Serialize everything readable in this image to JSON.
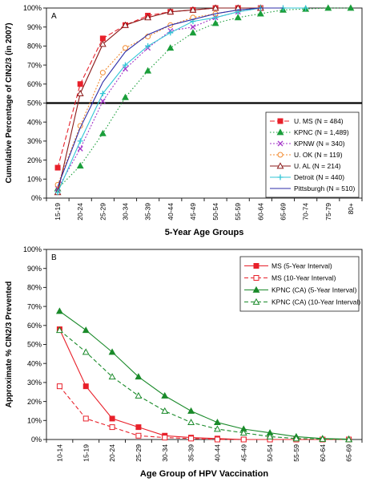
{
  "chart_data": [
    {
      "type": "line",
      "panel_label": "A",
      "title": "",
      "xlabel": "5-Year Age Groups",
      "ylabel": "Cumulative Percentage of CIN2/3 (in 2007)",
      "categories": [
        "15-19",
        "20-24",
        "25-29",
        "30-34",
        "35-39",
        "40-44",
        "45-49",
        "50-54",
        "55-59",
        "60-64",
        "65-69",
        "70-74",
        "75-79",
        "80+"
      ],
      "ylim": [
        0,
        100
      ],
      "yticks": [
        "0%",
        "10%",
        "20%",
        "30%",
        "40%",
        "50%",
        "60%",
        "70%",
        "80%",
        "90%",
        "100%"
      ],
      "grid": false,
      "reference_line": {
        "y": 50
      },
      "legend_position": "right-middle",
      "series": [
        {
          "name": "U. MS (N = 484)",
          "color": "#e8202a",
          "dash": "6,3",
          "marker": "square-filled",
          "values": [
            16,
            60,
            84,
            91,
            96,
            98,
            99,
            100,
            100,
            100,
            null,
            null,
            null,
            null
          ]
        },
        {
          "name": "KPNC (N = 1,489)",
          "color": "#1a9e3a",
          "dash": "1.5,2.5",
          "marker": "triangle-filled",
          "values": [
            5,
            17,
            34,
            53,
            67,
            79,
            87,
            92,
            95,
            97,
            99,
            99.5,
            100,
            100
          ]
        },
        {
          "name": "KPNW (N = 340)",
          "color": "#a335c8",
          "dash": "2,2",
          "marker": "x",
          "values": [
            5,
            26,
            51,
            68,
            79,
            88,
            90,
            95,
            98,
            100,
            null,
            null,
            null,
            null
          ]
        },
        {
          "name": "U. OK (N = 119)",
          "color": "#f28b30",
          "dash": "2,2",
          "marker": "circle-open",
          "values": [
            7,
            38,
            66,
            79,
            85,
            91,
            95,
            97,
            99,
            100,
            null,
            null,
            null,
            null
          ]
        },
        {
          "name": "U. AL (N = 214)",
          "color": "#8b1a1a",
          "dash": "",
          "marker": "triangle-open",
          "values": [
            3,
            55,
            81,
            91,
            95,
            98,
            99,
            100,
            100,
            100,
            null,
            null,
            null,
            null
          ]
        },
        {
          "name": "Detroit (N = 440)",
          "color": "#33c6d6",
          "dash": "",
          "marker": "plus",
          "values": [
            3,
            30,
            55,
            70,
            80,
            87,
            93,
            95,
            98,
            100,
            100,
            100,
            null,
            null
          ]
        },
        {
          "name": "Pittsburgh (N = 510)",
          "color": "#2d2da8",
          "dash": "",
          "marker": "none",
          "values": [
            6,
            37,
            61,
            77,
            86,
            91,
            94,
            97,
            99,
            100,
            100,
            null,
            null,
            null
          ]
        }
      ]
    },
    {
      "type": "line",
      "panel_label": "B",
      "title": "",
      "xlabel": "Age Group of HPV Vaccination",
      "ylabel": "Approximate % CIN2/3 Prevented",
      "categories": [
        "10-14",
        "15-19",
        "20-24",
        "25-29",
        "30-34",
        "35-39",
        "40-44",
        "45-49",
        "50-54",
        "55-59",
        "60-64",
        "65-69"
      ],
      "ylim": [
        0,
        100
      ],
      "yticks": [
        "0%",
        "10%",
        "20%",
        "30%",
        "40%",
        "50%",
        "60%",
        "70%",
        "80%",
        "90%",
        "100%"
      ],
      "grid": false,
      "legend_position": "top-right",
      "series": [
        {
          "name": "MS (5-Year Interval)",
          "color": "#e8202a",
          "dash": "",
          "marker": "square-filled",
          "values": [
            58,
            28,
            11,
            6.5,
            2,
            1,
            0.5,
            0,
            0,
            0,
            0,
            0
          ]
        },
        {
          "name": "MS (10-Year Interval)",
          "color": "#e8202a",
          "dash": "5,3",
          "marker": "square-open",
          "values": [
            28,
            11,
            6.5,
            2,
            1,
            0.5,
            0,
            0,
            0,
            0,
            0,
            0
          ]
        },
        {
          "name": "KPNC (CA) (5-Year Interval)",
          "color": "#1a8a2a",
          "dash": "",
          "marker": "triangle-filled",
          "values": [
            67.5,
            57.5,
            46,
            33,
            23,
            15,
            9,
            5.5,
            3.5,
            1.5,
            0.5,
            0.2
          ]
        },
        {
          "name": "KPNC (CA) (10-Year Interval)",
          "color": "#1a8a2a",
          "dash": "5,3",
          "marker": "triangle-open",
          "values": [
            57.5,
            46,
            33,
            23,
            15,
            9,
            5.5,
            3.5,
            1.5,
            0.5,
            0.2,
            0
          ]
        }
      ]
    }
  ]
}
